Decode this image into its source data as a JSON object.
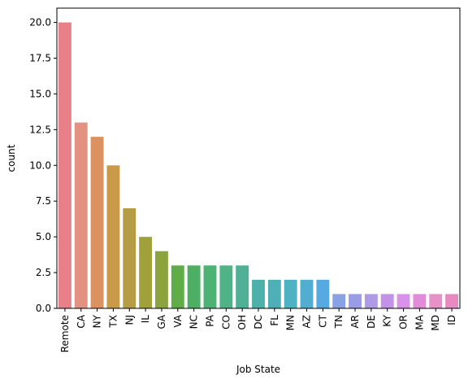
{
  "chart_data": {
    "type": "bar",
    "title": "",
    "xlabel": "Job State",
    "ylabel": "count",
    "categories": [
      "Remote",
      "CA",
      "NY",
      "TX",
      "NJ",
      "IL",
      "GA",
      "VA",
      "NC",
      "PA",
      "CO",
      "OH",
      "DC",
      "FL",
      "MN",
      "AZ",
      "CT",
      "TN",
      "AR",
      "DE",
      "KY",
      "OR",
      "MA",
      "MD",
      "ID"
    ],
    "values": [
      20,
      13,
      12,
      10,
      7,
      5,
      4,
      3,
      3,
      3,
      3,
      3,
      2,
      2,
      2,
      2,
      2,
      1,
      1,
      1,
      1,
      1,
      1,
      1,
      1
    ],
    "colors": [
      "#e8808a",
      "#e39181",
      "#db9160",
      "#c99a47",
      "#b49d45",
      "#a1a13b",
      "#8ca33e",
      "#5fac49",
      "#4daf63",
      "#4cb374",
      "#50b387",
      "#50b096",
      "#4db0a9",
      "#4eb0b6",
      "#4eb2c2",
      "#52aed1",
      "#57a9e2",
      "#88a2e3",
      "#999de7",
      "#ae9ae6",
      "#c392e7",
      "#d992e9",
      "#e28bd9",
      "#e691c7",
      "#e78ac0"
    ],
    "yticks": [
      "0.0",
      "2.5",
      "5.0",
      "7.5",
      "10.0",
      "12.5",
      "15.0",
      "17.5",
      "20.0"
    ],
    "ylim": [
      0,
      21
    ],
    "grid": false,
    "legend": "none"
  }
}
